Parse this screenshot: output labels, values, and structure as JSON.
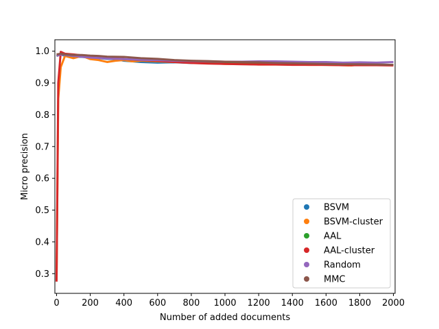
{
  "chart_data": {
    "type": "line",
    "title": "",
    "xlabel": "Number of added documents",
    "ylabel": "Micro precision",
    "xlim": [
      -10,
      2010
    ],
    "ylim": [
      0.238,
      1.036
    ],
    "xticks": [
      0,
      200,
      400,
      600,
      800,
      1000,
      1200,
      1400,
      1600,
      1800,
      2000
    ],
    "yticks": [
      0.3,
      0.4,
      0.5,
      0.6,
      0.7,
      0.8,
      0.9,
      1.0
    ],
    "xtick_labels": [
      "0",
      "200",
      "400",
      "600",
      "800",
      "1000",
      "1200",
      "1400",
      "1600",
      "1800",
      "2000"
    ],
    "ytick_labels": [
      "0.3",
      "0.4",
      "0.5",
      "0.6",
      "0.7",
      "0.8",
      "0.9",
      "1.0"
    ],
    "grid": false,
    "legend_position": "bottom-right",
    "series": [
      {
        "name": "BSVM",
        "color": "#1f77b4",
        "x": [
          0,
          25,
          50,
          100,
          150,
          200,
          250,
          300,
          350,
          400,
          450,
          500,
          600,
          700,
          800,
          900,
          1000,
          1100,
          1200,
          1300,
          1400,
          1500,
          1600,
          1700,
          1800,
          1900,
          2000
        ],
        "y": [
          0.985,
          0.99,
          0.985,
          0.983,
          0.982,
          0.98,
          0.978,
          0.976,
          0.975,
          0.97,
          0.968,
          0.966,
          0.964,
          0.965,
          0.963,
          0.962,
          0.961,
          0.962,
          0.96,
          0.96,
          0.958,
          0.958,
          0.957,
          0.957,
          0.958,
          0.957,
          0.956
        ]
      },
      {
        "name": "BSVM-cluster",
        "color": "#ff7f0e",
        "x": [
          0,
          10,
          25,
          50,
          100,
          150,
          200,
          250,
          300,
          350,
          400,
          450,
          500,
          600,
          700,
          800,
          900,
          1000,
          1100,
          1200,
          1300,
          1400,
          1500,
          1600,
          1700,
          1750,
          1800,
          1900,
          2000
        ],
        "y": [
          0.28,
          0.85,
          0.95,
          0.985,
          0.978,
          0.985,
          0.975,
          0.972,
          0.966,
          0.97,
          0.972,
          0.968,
          0.97,
          0.968,
          0.966,
          0.964,
          0.962,
          0.96,
          0.96,
          0.958,
          0.958,
          0.958,
          0.957,
          0.957,
          0.956,
          0.955,
          0.958,
          0.957,
          0.956
        ]
      },
      {
        "name": "AAL",
        "color": "#2ca02c",
        "x": [
          0,
          25,
          50,
          100,
          150,
          200,
          250,
          300,
          400,
          500,
          600,
          700,
          800,
          900,
          1000,
          1100,
          1200,
          1300,
          1400,
          1500,
          1600,
          1700,
          1800,
          1900,
          2000
        ],
        "y": [
          0.985,
          0.99,
          0.988,
          0.985,
          0.984,
          0.982,
          0.98,
          0.978,
          0.975,
          0.972,
          0.97,
          0.968,
          0.966,
          0.965,
          0.964,
          0.963,
          0.962,
          0.962,
          0.961,
          0.96,
          0.96,
          0.959,
          0.959,
          0.958,
          0.957
        ]
      },
      {
        "name": "AAL-cluster",
        "color": "#d62728",
        "x": [
          0,
          10,
          25,
          50,
          100,
          150,
          200,
          250,
          300,
          400,
          500,
          600,
          700,
          800,
          900,
          1000,
          1100,
          1200,
          1300,
          1400,
          1500,
          1600,
          1700,
          1800,
          1900,
          2000
        ],
        "y": [
          0.275,
          0.9,
          0.998,
          0.992,
          0.99,
          0.987,
          0.985,
          0.983,
          0.98,
          0.975,
          0.972,
          0.97,
          0.966,
          0.963,
          0.961,
          0.96,
          0.959,
          0.958,
          0.958,
          0.957,
          0.957,
          0.957,
          0.956,
          0.956,
          0.956,
          0.955
        ]
      },
      {
        "name": "Random",
        "color": "#9467bd",
        "x": [
          0,
          25,
          50,
          100,
          200,
          300,
          400,
          500,
          600,
          700,
          800,
          900,
          1000,
          1100,
          1200,
          1300,
          1400,
          1500,
          1600,
          1700,
          1800,
          1900,
          2000
        ],
        "y": [
          0.985,
          0.99,
          0.988,
          0.985,
          0.98,
          0.977,
          0.975,
          0.973,
          0.972,
          0.97,
          0.969,
          0.968,
          0.967,
          0.967,
          0.968,
          0.968,
          0.967,
          0.966,
          0.966,
          0.964,
          0.965,
          0.964,
          0.966
        ]
      },
      {
        "name": "MMC",
        "color": "#8c564b",
        "x": [
          0,
          25,
          50,
          100,
          150,
          200,
          250,
          300,
          400,
          500,
          600,
          700,
          800,
          900,
          1000,
          1100,
          1200,
          1300,
          1400,
          1500,
          1600,
          1700,
          1800,
          1900,
          2000
        ],
        "y": [
          0.99,
          0.992,
          0.99,
          0.988,
          0.988,
          0.986,
          0.985,
          0.983,
          0.982,
          0.978,
          0.976,
          0.972,
          0.97,
          0.969,
          0.967,
          0.966,
          0.965,
          0.963,
          0.962,
          0.961,
          0.96,
          0.959,
          0.959,
          0.958,
          0.957
        ]
      }
    ]
  }
}
